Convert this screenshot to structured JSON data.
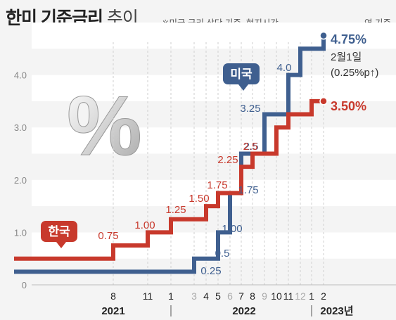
{
  "header": {
    "title": "한미 기준금리",
    "title_suffix": " 추이",
    "note": "※미국 금리 상단 기준, 현지시간",
    "basis": "연 기준"
  },
  "chart_data": {
    "type": "line",
    "step": true,
    "ylim": [
      0,
      5
    ],
    "yticks": [
      "0",
      "1.0",
      "2.0",
      "3.0",
      "4.0"
    ],
    "grid": true,
    "x_months": [
      {
        "label": "8",
        "color": "#222"
      },
      {
        "label": "11",
        "color": "#222"
      },
      {
        "label": "1",
        "color": "#222"
      },
      {
        "label": "3",
        "color": "#aaa"
      },
      {
        "label": "4",
        "color": "#222"
      },
      {
        "label": "5",
        "color": "#222"
      },
      {
        "label": "6",
        "color": "#aaa"
      },
      {
        "label": "7",
        "color": "#222"
      },
      {
        "label": "8",
        "color": "#222"
      },
      {
        "label": "9",
        "color": "#aaa"
      },
      {
        "label": "10",
        "color": "#222"
      },
      {
        "label": "11",
        "color": "#222"
      },
      {
        "label": "12",
        "color": "#aaa"
      },
      {
        "label": "1",
        "color": "#222"
      },
      {
        "label": "2",
        "color": "#222"
      }
    ],
    "years": [
      "2021",
      "2022",
      "2023년"
    ],
    "series": [
      {
        "name": "미국",
        "color": "#3f5f8f",
        "steps": [
          [
            "2021-01",
            0.25
          ],
          [
            "2022-03",
            0.5
          ],
          [
            "2022-05",
            1.0
          ],
          [
            "2022-06",
            1.75
          ],
          [
            "2022-07",
            2.5
          ],
          [
            "2022-09",
            3.25
          ],
          [
            "2022-11",
            4.0
          ],
          [
            "2022-12",
            4.5
          ],
          [
            "2023-02",
            4.75
          ]
        ],
        "labels": [
          "0.25",
          "0.5",
          "1.00",
          "1.75",
          "2.5",
          "3.25",
          "4.0"
        ],
        "end_label": "4.75%",
        "end_note_1": "2월1일",
        "end_note_2": "(0.25%p↑)"
      },
      {
        "name": "한국",
        "color": "#c8392c",
        "steps": [
          [
            "2021-01",
            0.5
          ],
          [
            "2021-08",
            0.75
          ],
          [
            "2021-11",
            1.0
          ],
          [
            "2022-01",
            1.25
          ],
          [
            "2022-04",
            1.5
          ],
          [
            "2022-05",
            1.75
          ],
          [
            "2022-07",
            2.25
          ],
          [
            "2022-08",
            2.5
          ],
          [
            "2022-10",
            3.0
          ],
          [
            "2022-11",
            3.25
          ],
          [
            "2023-01",
            3.5
          ]
        ],
        "labels": [
          "0.75",
          "1.00",
          "1.25",
          "1.50",
          "1.75",
          "2.25",
          "2.5"
        ],
        "end_label": "3.50%"
      }
    ]
  }
}
